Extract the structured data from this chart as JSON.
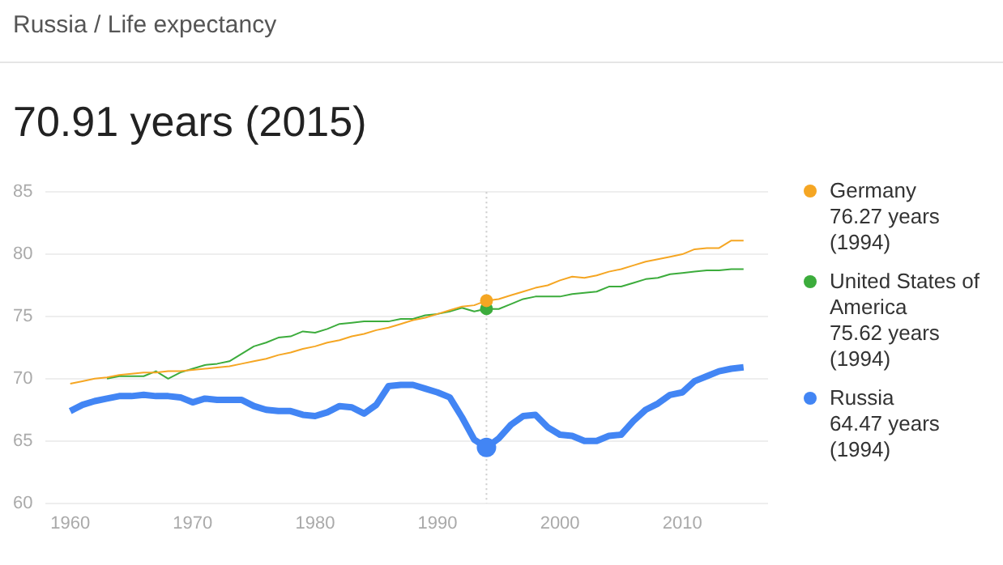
{
  "chart_data": {
    "type": "line",
    "title": "Russia / Life expectancy",
    "subtitle": "70.91 years (2015)",
    "x": [
      1960,
      1961,
      1962,
      1963,
      1964,
      1965,
      1966,
      1967,
      1968,
      1969,
      1970,
      1971,
      1972,
      1973,
      1974,
      1975,
      1976,
      1977,
      1978,
      1979,
      1980,
      1981,
      1982,
      1983,
      1984,
      1985,
      1986,
      1987,
      1988,
      1989,
      1990,
      1991,
      1992,
      1993,
      1994,
      1995,
      1996,
      1997,
      1998,
      1999,
      2000,
      2001,
      2002,
      2003,
      2004,
      2005,
      2006,
      2007,
      2008,
      2009,
      2010,
      2011,
      2012,
      2013,
      2014,
      2015
    ],
    "series": [
      {
        "name": "Germany",
        "color": "#f5a623",
        "values": [
          69.6,
          69.8,
          70.0,
          70.1,
          70.3,
          70.4,
          70.5,
          70.5,
          70.6,
          70.6,
          70.7,
          70.8,
          70.9,
          71.0,
          71.2,
          71.4,
          71.6,
          71.9,
          72.1,
          72.4,
          72.6,
          72.9,
          73.1,
          73.4,
          73.6,
          73.9,
          74.1,
          74.4,
          74.7,
          74.9,
          75.2,
          75.5,
          75.8,
          75.9,
          76.27,
          76.4,
          76.7,
          77.0,
          77.3,
          77.5,
          77.9,
          78.2,
          78.1,
          78.3,
          78.6,
          78.8,
          79.1,
          79.4,
          79.6,
          79.8,
          80.0,
          80.4,
          80.5,
          80.5,
          81.1,
          81.1
        ]
      },
      {
        "name": "United States of America",
        "color": "#3cac3c",
        "x": [
          1963,
          1964,
          1965,
          1966,
          1967,
          1968,
          1969,
          1970,
          1971,
          1972,
          1973,
          1974,
          1975,
          1976,
          1977,
          1978,
          1979,
          1980,
          1981,
          1982,
          1983,
          1984,
          1985,
          1986,
          1987,
          1988,
          1989,
          1990,
          1991,
          1992,
          1993,
          1994,
          1995,
          1996,
          1997,
          1998,
          1999,
          2000,
          2001,
          2002,
          2003,
          2004,
          2005,
          2006,
          2007,
          2008,
          2009,
          2010,
          2011,
          2012,
          2013,
          2014,
          2015
        ],
        "values": [
          70.0,
          70.2,
          70.2,
          70.2,
          70.6,
          70.0,
          70.5,
          70.8,
          71.1,
          71.2,
          71.4,
          72.0,
          72.6,
          72.9,
          73.3,
          73.4,
          73.8,
          73.7,
          74.0,
          74.4,
          74.5,
          74.6,
          74.6,
          74.6,
          74.8,
          74.8,
          75.1,
          75.2,
          75.4,
          75.7,
          75.4,
          75.62,
          75.6,
          76.0,
          76.4,
          76.6,
          76.6,
          76.6,
          76.8,
          76.9,
          77.0,
          77.4,
          77.4,
          77.7,
          78.0,
          78.1,
          78.4,
          78.5,
          78.6,
          78.7,
          78.7,
          78.8,
          78.8
        ]
      },
      {
        "name": "Russia",
        "color": "#4285f4",
        "values": [
          67.4,
          67.9,
          68.2,
          68.4,
          68.6,
          68.6,
          68.7,
          68.6,
          68.6,
          68.5,
          68.1,
          68.4,
          68.3,
          68.3,
          68.3,
          67.8,
          67.5,
          67.4,
          67.4,
          67.1,
          67.0,
          67.3,
          67.8,
          67.7,
          67.2,
          67.9,
          69.4,
          69.5,
          69.5,
          69.2,
          68.9,
          68.5,
          66.9,
          65.1,
          64.47,
          65.2,
          66.3,
          67.0,
          67.1,
          66.1,
          65.5,
          65.4,
          65.0,
          65.0,
          65.4,
          65.5,
          66.6,
          67.5,
          68.0,
          68.7,
          68.9,
          69.8,
          70.2,
          70.6,
          70.8,
          70.91
        ]
      }
    ],
    "annotations": [
      "76.27 years (1994)",
      "75.62 years (1994)",
      "64.47 years (1994)"
    ],
    "xlim": [
      1958,
      2017
    ],
    "xticks": [
      1960,
      1970,
      1980,
      1990,
      2000,
      2010
    ],
    "ylim": [
      60,
      85
    ],
    "yticks": [
      60,
      65,
      70,
      75,
      80,
      85
    ],
    "ref_lines": [
      {
        "axis": "x",
        "value": 1994,
        "color": "#cccccc",
        "line_style": "dotted"
      }
    ],
    "grid": "y",
    "legend": "right"
  }
}
